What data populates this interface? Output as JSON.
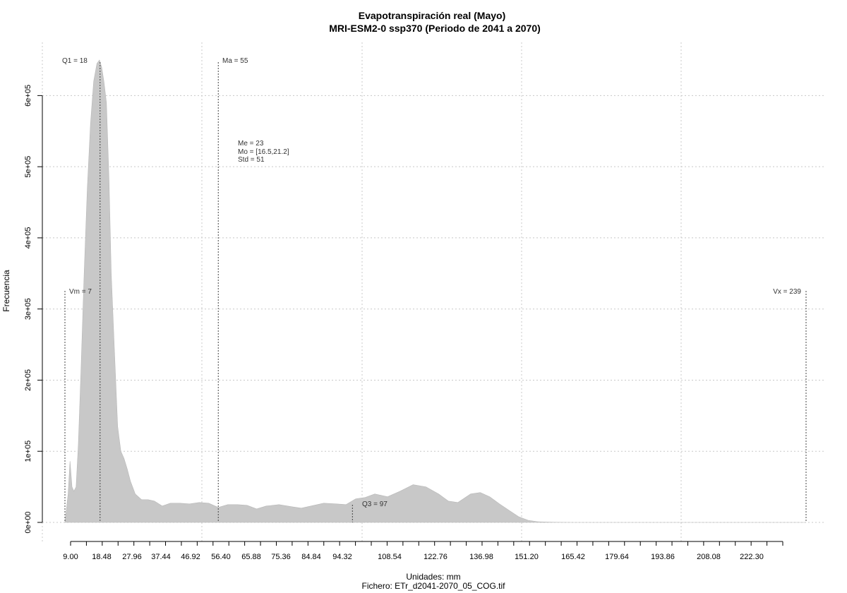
{
  "chart_data": {
    "type": "area",
    "title": "Evapotranspiración real (Mayo)",
    "subtitle": "MRI-ESM2-0 ssp370 (Periodo de 2041 a 2070)",
    "xlabel": "Unidades: mm",
    "caption": "Fichero: ETr_d2041-2070_05_COG.tif",
    "ylabel": "Frecuencia",
    "xlim": [
      7,
      239
    ],
    "ylim": [
      0,
      650000
    ],
    "grid": true,
    "x_ticks": [
      "9.00",
      "18.48",
      "27.96",
      "37.44",
      "46.92",
      "56.40",
      "65.88",
      "75.36",
      "84.84",
      "94.32",
      "108.54",
      "122.76",
      "136.98",
      "151.20",
      "165.42",
      "179.64",
      "193.86",
      "208.08",
      "222.30"
    ],
    "y_ticks": [
      "0e+00",
      "1e+05",
      "2e+05",
      "3e+05",
      "4e+05",
      "5e+05",
      "6e+05"
    ],
    "y_tick_values": [
      0,
      100000,
      200000,
      300000,
      400000,
      500000,
      600000
    ],
    "annotations": {
      "q1": "Q1 = 18",
      "ma": "Ma = 55",
      "me": "Me = 23",
      "mo": "Mo = [16.5,21.2]",
      "std": "Std = 51",
      "vm": "Vm = 7",
      "vx": "Vx = 239",
      "q3": "Q3 = 97"
    },
    "stat_values": {
      "q1": 18,
      "ma": 55,
      "me": 23,
      "vm": 7,
      "vx": 239,
      "q3": 97
    },
    "series": [
      {
        "x": [
          7,
          8,
          8.6,
          9.2,
          9.8,
          10.5,
          11.2,
          12,
          13,
          14,
          15,
          16,
          17,
          17.8,
          18.5,
          19.2,
          20,
          20.8,
          21.5,
          22.5,
          23.5,
          24.5,
          25.5,
          26.5,
          27.5,
          29,
          31,
          33,
          35,
          37.44,
          40,
          43,
          46,
          49,
          52,
          55,
          58,
          61,
          64,
          67,
          70,
          74,
          78,
          81,
          85,
          88,
          92,
          95,
          98,
          101,
          104,
          108,
          112,
          116,
          120,
          124,
          127,
          130,
          134,
          137,
          140,
          143,
          146,
          149,
          152,
          155,
          158,
          161,
          163,
          166,
          169,
          172,
          175,
          177,
          179.64,
          185,
          200,
          220,
          237,
          239
        ],
        "values": [
          0,
          40000,
          86000,
          50000,
          44000,
          50000,
          110000,
          210000,
          350000,
          470000,
          560000,
          620000,
          645000,
          650000,
          640000,
          620000,
          590000,
          480000,
          350000,
          240000,
          135000,
          100000,
          90000,
          75000,
          58000,
          40000,
          32000,
          32000,
          30000,
          23000,
          27000,
          27000,
          26000,
          28000,
          27000,
          21000,
          25000,
          25000,
          24000,
          19000,
          23000,
          25000,
          22000,
          20000,
          24000,
          27000,
          26000,
          25000,
          33000,
          35000,
          40000,
          36000,
          44000,
          53000,
          50000,
          40000,
          30000,
          28000,
          40000,
          42000,
          36000,
          26000,
          17000,
          8000,
          3000,
          1000,
          500,
          200,
          100,
          0,
          0,
          0,
          0,
          0,
          0,
          0,
          0,
          0,
          0,
          0
        ]
      }
    ]
  }
}
